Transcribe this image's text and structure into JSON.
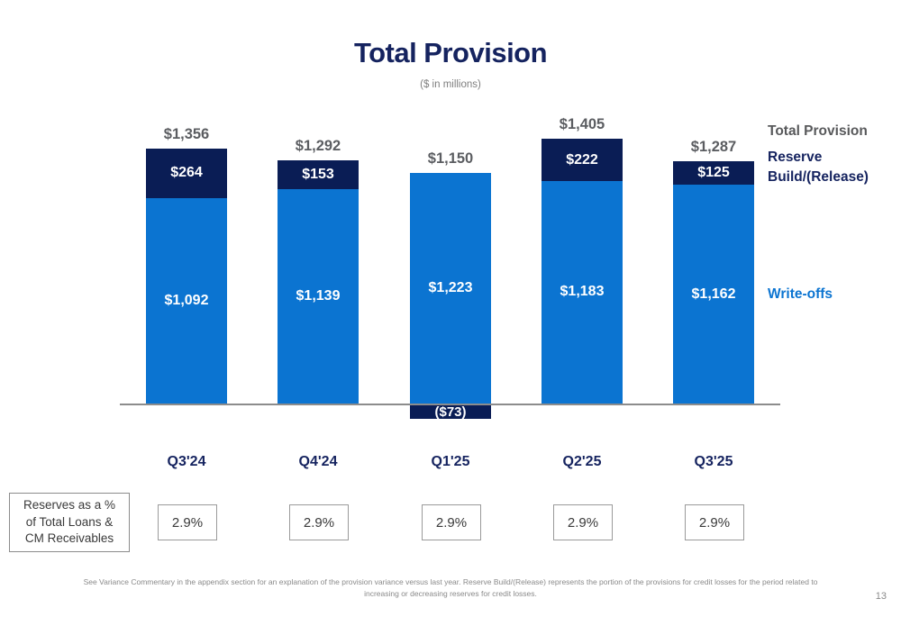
{
  "title": "Total Provision",
  "subtitle": "($ in millions)",
  "legend": {
    "total_provision": "Total Provision",
    "reserve_build_release": "Reserve Build/(Release)",
    "write_offs": "Write-offs"
  },
  "chart_data": {
    "type": "bar",
    "stacked": true,
    "title": "Total Provision",
    "subtitle": "($ in millions)",
    "categories": [
      "Q3'24",
      "Q4'24",
      "Q1'25",
      "Q2'25",
      "Q3'25"
    ],
    "series": [
      {
        "name": "Write-offs",
        "values": [
          1092,
          1139,
          1223,
          1183,
          1162
        ],
        "color": "#0b74d1"
      },
      {
        "name": "Reserve Build/(Release)",
        "values": [
          264,
          153,
          -73,
          222,
          125
        ],
        "color": "#0a1d55"
      }
    ],
    "totals": [
      1356,
      1292,
      1150,
      1405,
      1287
    ],
    "total_labels": [
      "$1,356",
      "$1,292",
      "$1,150",
      "$1,405",
      "$1,287"
    ],
    "segment_labels": {
      "write_offs": [
        "$1,092",
        "$1,139",
        "$1,223",
        "$1,183",
        "$1,162"
      ],
      "reserve": [
        "$264",
        "$153",
        "($73)",
        "$222",
        "$125"
      ]
    },
    "legend_position": "right",
    "grid": false,
    "baseline": 0
  },
  "reserves_row": {
    "label": "Reserves as a %\nof Total Loans &\nCM Receivables",
    "values": [
      "2.9%",
      "2.9%",
      "2.9%",
      "2.9%",
      "2.9%"
    ]
  },
  "footer": {
    "note": "See Variance Commentary in the appendix section for an explanation of the provision variance versus last year. Reserve Build/(Release) represents the portion of the provisions for credit losses for the period related to\nincreasing or decreasing reserves for credit losses.",
    "page_number": "13"
  },
  "colors": {
    "write_offs_blue": "#0b74d1",
    "reserve_navy": "#0a1d55",
    "title_navy": "#15235f",
    "total_label_gray": "#5b5d61",
    "axis_gray": "#8c8c8c"
  }
}
